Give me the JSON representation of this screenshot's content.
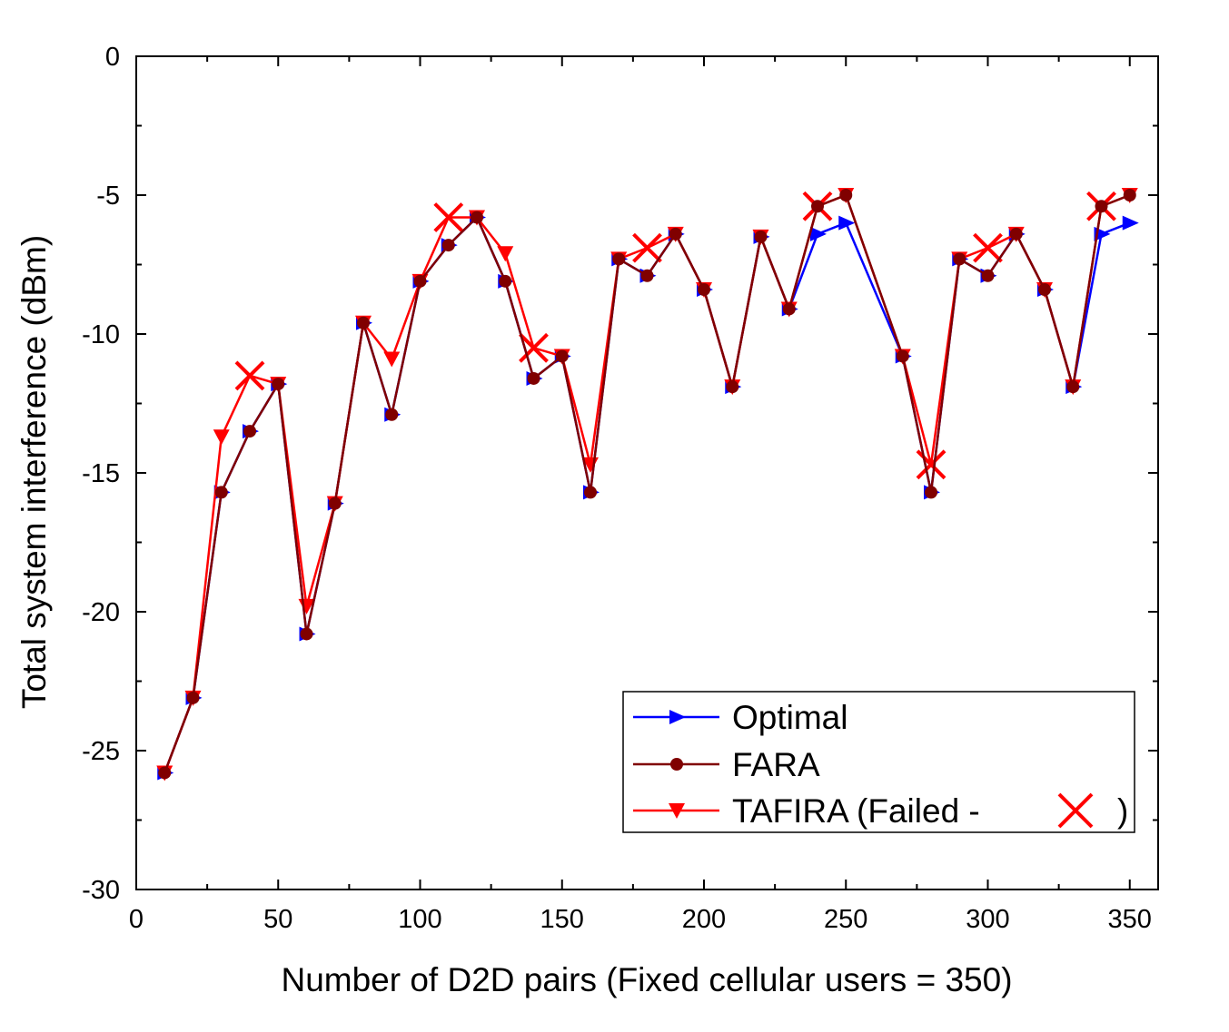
{
  "chart_data": {
    "type": "line",
    "xlabel": "Number of D2D pairs (Fixed cellular users = 350)",
    "ylabel": "Total system interference (dBm)",
    "xlim": [
      0,
      360
    ],
    "ylim": [
      -30,
      0
    ],
    "xticks": [
      0,
      50,
      100,
      150,
      200,
      250,
      300,
      350
    ],
    "yticks": [
      0,
      -5,
      -10,
      -15,
      -20,
      -25,
      -30
    ],
    "x": [
      10,
      20,
      30,
      40,
      50,
      60,
      70,
      80,
      90,
      100,
      110,
      120,
      130,
      140,
      150,
      160,
      170,
      180,
      190,
      200,
      210,
      220,
      230,
      240,
      250,
      270,
      280,
      290,
      300,
      310,
      320,
      330,
      340,
      350
    ],
    "series": [
      {
        "name": "Optimal",
        "color": "#0000ff",
        "marker": "triangle-right",
        "values": [
          -25.8,
          -23.1,
          -15.7,
          -13.5,
          -11.8,
          -20.8,
          -16.1,
          -9.6,
          -12.9,
          -8.1,
          -6.8,
          -5.8,
          -8.1,
          -11.6,
          -10.8,
          -15.7,
          -7.3,
          -7.9,
          -6.4,
          -8.4,
          -11.9,
          -6.5,
          -9.1,
          -6.4,
          -6.0,
          -10.8,
          -15.7,
          -7.3,
          -7.9,
          -6.4,
          -8.4,
          -11.9,
          -6.4,
          -6.0
        ]
      },
      {
        "name": "FARA",
        "color": "#800000",
        "marker": "circle",
        "values": [
          -25.8,
          -23.1,
          -15.7,
          -13.5,
          -11.8,
          -20.8,
          -16.1,
          -9.6,
          -12.9,
          -8.1,
          -6.8,
          -5.8,
          -8.1,
          -11.6,
          -10.8,
          -15.7,
          -7.3,
          -7.9,
          -6.4,
          -8.4,
          -11.9,
          -6.5,
          -9.1,
          -5.4,
          -5.0,
          -10.8,
          -15.7,
          -7.3,
          -7.9,
          -6.4,
          -8.4,
          -11.9,
          -5.4,
          -5.0
        ]
      },
      {
        "name": "TAFIRA (Failed -",
        "legend_suffix": ")",
        "color": "#ff0000",
        "marker": "triangle-down",
        "failed_marker": "x",
        "values": [
          -25.8,
          -23.1,
          -13.7,
          -11.5,
          -11.8,
          -19.8,
          -16.1,
          -9.6,
          -10.9,
          -8.1,
          -5.8,
          -5.8,
          -7.1,
          -10.5,
          -10.8,
          -14.7,
          -7.3,
          -6.9,
          -6.4,
          -8.4,
          -11.9,
          -6.5,
          -9.1,
          -5.4,
          -5.0,
          -10.8,
          -14.7,
          -7.3,
          -6.9,
          -6.4,
          -8.4,
          -11.9,
          -5.4,
          -5.0
        ],
        "failed_x": [
          40,
          110,
          140,
          180,
          240,
          280,
          300,
          340
        ]
      }
    ],
    "legend_position": "bottom-right",
    "grid": false
  }
}
